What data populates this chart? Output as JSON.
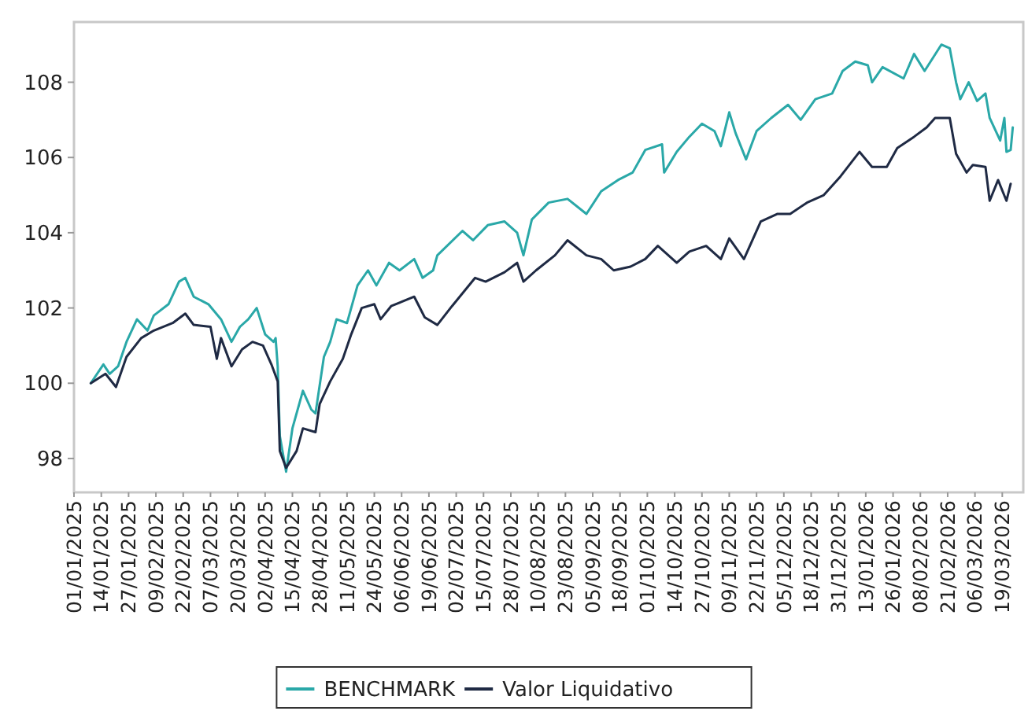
{
  "chart_data": {
    "type": "line",
    "x": [
      "2025-01-09",
      "2025-01-15",
      "2025-01-18",
      "2025-01-22",
      "2025-01-26",
      "2025-01-31",
      "2025-02-05",
      "2025-02-08",
      "2025-02-15",
      "2025-02-20",
      "2025-02-23",
      "2025-02-27",
      "2025-03-06",
      "2025-03-12",
      "2025-03-17",
      "2025-03-21",
      "2025-03-25",
      "2025-03-29",
      "2025-04-02",
      "2025-04-06",
      "2025-04-07",
      "2025-04-08",
      "2025-04-09",
      "2025-04-12",
      "2025-04-15",
      "2025-04-20",
      "2025-04-24",
      "2025-04-26",
      "2025-04-30",
      "2025-05-03",
      "2025-05-06",
      "2025-05-11",
      "2025-05-16",
      "2025-05-21",
      "2025-05-25",
      "2025-05-31",
      "2025-06-05",
      "2025-06-12",
      "2025-06-16",
      "2025-06-21",
      "2025-06-23",
      "2025-07-05",
      "2025-07-10",
      "2025-07-17",
      "2025-07-25",
      "2025-07-31",
      "2025-08-03",
      "2025-08-07",
      "2025-08-15",
      "2025-08-24",
      "2025-09-02",
      "2025-09-09",
      "2025-09-17",
      "2025-09-24",
      "2025-09-30",
      "2025-10-08",
      "2025-10-09",
      "2025-10-15",
      "2025-10-21",
      "2025-10-27",
      "2025-11-02",
      "2025-11-05",
      "2025-11-09",
      "2025-11-12",
      "2025-11-17",
      "2025-11-22",
      "2025-11-29",
      "2025-12-07",
      "2025-12-13",
      "2025-12-20",
      "2025-12-28",
      "2026-01-02",
      "2026-01-08",
      "2026-01-14",
      "2026-01-16",
      "2026-01-21",
      "2026-01-31",
      "2026-02-05",
      "2026-02-10",
      "2026-02-18",
      "2026-02-22",
      "2026-02-25",
      "2026-02-27",
      "2026-03-03",
      "2026-03-07",
      "2026-03-11",
      "2026-03-13",
      "2026-03-18",
      "2026-03-20",
      "2026-03-21",
      "2026-03-23",
      "2026-03-24"
    ],
    "series": [
      {
        "name": "BENCHMARK",
        "color": "#2aa8a8",
        "values": [
          100.0,
          100.5,
          100.25,
          100.45,
          101.1,
          101.7,
          101.4,
          101.8,
          102.1,
          102.7,
          102.8,
          102.3,
          102.1,
          101.7,
          101.1,
          101.5,
          101.7,
          102.0,
          101.3,
          101.1,
          101.2,
          100.45,
          98.6,
          97.65,
          98.8,
          99.8,
          99.3,
          99.2,
          100.7,
          101.1,
          101.7,
          101.6,
          102.6,
          103.0,
          102.6,
          103.2,
          103.0,
          103.3,
          102.8,
          103.0,
          103.4,
          104.05,
          103.8,
          104.2,
          104.3,
          104.0,
          103.4,
          104.35,
          104.8,
          104.9,
          104.5,
          105.1,
          105.4,
          105.6,
          106.2,
          106.35,
          105.6,
          106.15,
          106.55,
          106.9,
          106.7,
          106.3,
          107.2,
          106.65,
          105.95,
          106.7,
          107.05,
          107.4,
          107.0,
          107.55,
          107.7,
          108.3,
          108.55,
          108.45,
          108.0,
          108.4,
          108.1,
          108.75,
          108.3,
          109.0,
          108.9,
          108.0,
          107.55,
          108.0,
          107.5,
          107.7,
          107.05,
          106.45,
          107.05,
          106.15,
          106.2,
          106.8
        ]
      },
      {
        "name": "Valor Liquidativo",
        "color": "#1f2a44",
        "x": [
          "2025-01-09",
          "2025-01-16",
          "2025-01-21",
          "2025-01-26",
          "2025-02-02",
          "2025-02-08",
          "2025-02-17",
          "2025-02-23",
          "2025-02-27",
          "2025-03-07",
          "2025-03-10",
          "2025-03-12",
          "2025-03-17",
          "2025-03-22",
          "2025-03-27",
          "2025-04-01",
          "2025-04-05",
          "2025-04-08",
          "2025-04-09",
          "2025-04-12",
          "2025-04-17",
          "2025-04-20",
          "2025-04-26",
          "2025-04-28",
          "2025-05-03",
          "2025-05-09",
          "2025-05-13",
          "2025-05-18",
          "2025-05-24",
          "2025-05-27",
          "2025-06-01",
          "2025-06-12",
          "2025-06-17",
          "2025-06-23",
          "2025-06-30",
          "2025-07-11",
          "2025-07-16",
          "2025-07-25",
          "2025-07-31",
          "2025-08-03",
          "2025-08-09",
          "2025-08-18",
          "2025-08-24",
          "2025-09-02",
          "2025-09-09",
          "2025-09-15",
          "2025-09-23",
          "2025-09-30",
          "2025-10-06",
          "2025-10-15",
          "2025-10-21",
          "2025-10-29",
          "2025-11-05",
          "2025-11-09",
          "2025-11-16",
          "2025-11-24",
          "2025-12-02",
          "2025-12-08",
          "2025-12-16",
          "2025-12-24",
          "2026-01-01",
          "2026-01-10",
          "2026-01-16",
          "2026-01-23",
          "2026-01-28",
          "2026-02-05",
          "2026-02-11",
          "2026-02-15",
          "2026-02-22",
          "2026-02-25",
          "2026-03-02",
          "2026-03-05",
          "2026-03-11",
          "2026-03-13",
          "2026-03-17",
          "2026-03-21",
          "2026-03-23"
        ],
        "values": [
          100.0,
          100.25,
          99.9,
          100.7,
          101.2,
          101.4,
          101.6,
          101.85,
          101.55,
          101.5,
          100.65,
          101.2,
          100.45,
          100.9,
          101.1,
          101.0,
          100.5,
          100.05,
          98.2,
          97.75,
          98.2,
          98.8,
          98.7,
          99.45,
          100.05,
          100.65,
          101.3,
          102.0,
          102.1,
          101.7,
          102.05,
          102.3,
          101.75,
          101.55,
          102.05,
          102.8,
          102.7,
          102.95,
          103.2,
          102.7,
          103.0,
          103.4,
          103.8,
          103.4,
          103.3,
          103.0,
          103.1,
          103.3,
          103.65,
          103.2,
          103.5,
          103.65,
          103.3,
          103.85,
          103.3,
          104.3,
          104.5,
          104.5,
          104.8,
          105.0,
          105.5,
          106.15,
          105.75,
          105.75,
          106.25,
          106.55,
          106.8,
          107.05,
          107.05,
          106.1,
          105.6,
          105.8,
          105.75,
          104.85,
          105.4,
          104.85,
          105.3
        ]
      }
    ],
    "xlim": [
      "2025-01-01",
      "2026-03-29"
    ],
    "xticks": [
      {
        "value": "2025-01-01",
        "label": "01/01/2025"
      },
      {
        "value": "2025-01-14",
        "label": "14/01/2025"
      },
      {
        "value": "2025-01-27",
        "label": "27/01/2025"
      },
      {
        "value": "2025-02-09",
        "label": "09/02/2025"
      },
      {
        "value": "2025-02-22",
        "label": "22/02/2025"
      },
      {
        "value": "2025-03-07",
        "label": "07/03/2025"
      },
      {
        "value": "2025-03-20",
        "label": "20/03/2025"
      },
      {
        "value": "2025-04-02",
        "label": "02/04/2025"
      },
      {
        "value": "2025-04-15",
        "label": "15/04/2025"
      },
      {
        "value": "2025-04-28",
        "label": "28/04/2025"
      },
      {
        "value": "2025-05-11",
        "label": "11/05/2025"
      },
      {
        "value": "2025-05-24",
        "label": "24/05/2025"
      },
      {
        "value": "2025-06-06",
        "label": "06/06/2025"
      },
      {
        "value": "2025-06-19",
        "label": "19/06/2025"
      },
      {
        "value": "2025-07-02",
        "label": "02/07/2025"
      },
      {
        "value": "2025-07-15",
        "label": "15/07/2025"
      },
      {
        "value": "2025-07-28",
        "label": "28/07/2025"
      },
      {
        "value": "2025-08-10",
        "label": "10/08/2025"
      },
      {
        "value": "2025-08-23",
        "label": "23/08/2025"
      },
      {
        "value": "2025-09-05",
        "label": "05/09/2025"
      },
      {
        "value": "2025-09-18",
        "label": "18/09/2025"
      },
      {
        "value": "2025-10-01",
        "label": "01/10/2025"
      },
      {
        "value": "2025-10-14",
        "label": "14/10/2025"
      },
      {
        "value": "2025-10-27",
        "label": "27/10/2025"
      },
      {
        "value": "2025-11-09",
        "label": "09/11/2025"
      },
      {
        "value": "2025-11-22",
        "label": "22/11/2025"
      },
      {
        "value": "2025-12-05",
        "label": "05/12/2025"
      },
      {
        "value": "2025-12-18",
        "label": "18/12/2025"
      },
      {
        "value": "2025-12-31",
        "label": "31/12/2025"
      },
      {
        "value": "2026-01-13",
        "label": "13/01/2026"
      },
      {
        "value": "2026-01-26",
        "label": "26/01/2026"
      },
      {
        "value": "2026-02-08",
        "label": "08/02/2026"
      },
      {
        "value": "2026-02-21",
        "label": "21/02/2026"
      },
      {
        "value": "2026-03-06",
        "label": "06/03/2026"
      },
      {
        "value": "2026-03-19",
        "label": "19/03/2026"
      }
    ],
    "ylim": [
      97.1,
      109.6
    ],
    "yticks": [
      98,
      100,
      102,
      104,
      106,
      108
    ],
    "grid": false,
    "legend": "bottom",
    "marker": "none",
    "line_style": "solid"
  }
}
